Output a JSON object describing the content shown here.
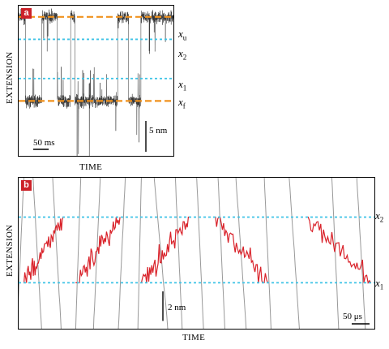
{
  "chart_data": [
    {
      "type": "line",
      "panel_label": "a",
      "xlabel": "TIME",
      "ylabel": "EXTENSION",
      "levels": [
        {
          "name": "x",
          "sub": "u",
          "y": 4.0,
          "style": "orange-dashed"
        },
        {
          "name": "x",
          "sub": "2",
          "y": 3.0,
          "style": "cyan-dotted"
        },
        {
          "name": "x",
          "sub": "1",
          "y": 1.25,
          "style": "cyan-dotted"
        },
        {
          "name": "x",
          "sub": "f",
          "y": 0.25,
          "style": "orange-dashed"
        }
      ],
      "scalebar_x": {
        "label": "50 ms",
        "value_ms": 50
      },
      "scalebar_y": {
        "label": "5 nm",
        "value_nm": 5
      },
      "duration_ms": 500,
      "dwells": [
        {
          "state": "u",
          "t_start": 0,
          "t_end": 22
        },
        {
          "state": "f",
          "t_start": 22,
          "t_end": 75
        },
        {
          "state": "u",
          "t_start": 75,
          "t_end": 125
        },
        {
          "state": "f",
          "t_start": 125,
          "t_end": 168
        },
        {
          "state": "u",
          "t_start": 168,
          "t_end": 182
        },
        {
          "state": "f",
          "t_start": 182,
          "t_end": 320
        },
        {
          "state": "u",
          "t_start": 320,
          "t_end": 355
        },
        {
          "state": "f",
          "t_start": 355,
          "t_end": 395
        },
        {
          "state": "u",
          "t_start": 395,
          "t_end": 500
        }
      ],
      "colors": {
        "trace": "#333333",
        "orange": "#f0921e",
        "cyan": "#3ec3e6"
      }
    },
    {
      "type": "line",
      "panel_label": "b",
      "xlabel": "TIME",
      "ylabel": "EXTENSION",
      "levels": [
        {
          "name": "x",
          "sub": "2",
          "y": 2.0,
          "style": "cyan-dotted"
        },
        {
          "name": "x",
          "sub": "1",
          "y": 0.0,
          "style": "cyan-dotted"
        }
      ],
      "scalebar_x": {
        "label": "50 μs",
        "value_us": 50
      },
      "scalebar_y": {
        "label": "2 nm",
        "value_nm": 2
      },
      "duration_us": 1000,
      "transitions": [
        {
          "direction": "up",
          "t_start": 15,
          "t_end": 125
        },
        {
          "direction": "up",
          "t_start": 160,
          "t_end": 285
        },
        {
          "direction": "up",
          "t_start": 345,
          "t_end": 480
        },
        {
          "direction": "down",
          "t_start": 550,
          "t_end": 700
        },
        {
          "direction": "down",
          "t_start": 810,
          "t_end": 990
        }
      ],
      "colors": {
        "trajectory": "#d9222a",
        "outside": "#999999",
        "cyan": "#3ec3e6"
      }
    }
  ]
}
